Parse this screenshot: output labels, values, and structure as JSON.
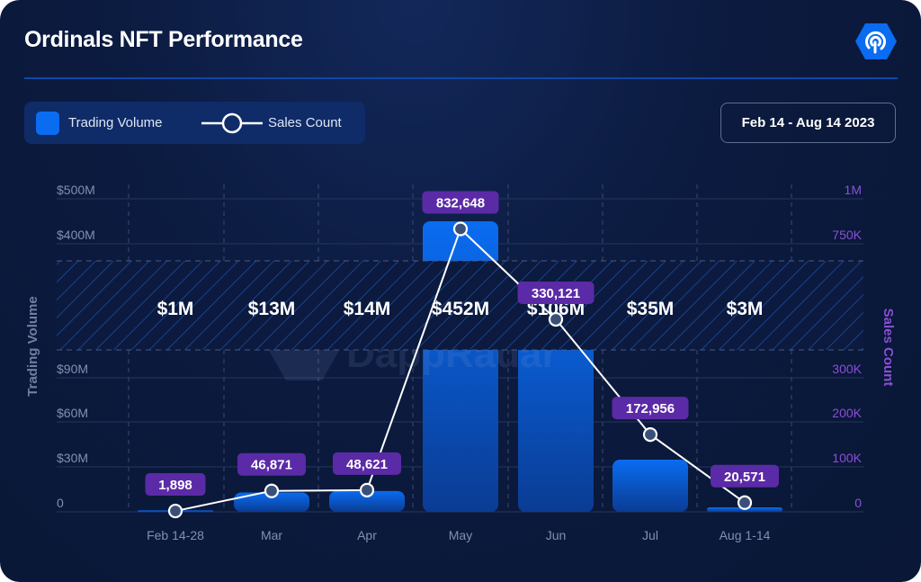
{
  "header": {
    "title": "Ordinals NFT Performance",
    "logo_icon": "dappradar-logo-icon"
  },
  "legend": {
    "volume_label": "Trading Volume",
    "sales_label": "Sales Count"
  },
  "date_range": "Feb 14 - Aug 14 2023",
  "watermark": "DappRadar",
  "colors": {
    "bar": "#0a6cf0",
    "line": "#ffffff",
    "pill": "#5b2aa6",
    "right_axis": "#8a4fd6",
    "background": "#0b1a3e"
  },
  "chart_data": {
    "type": "bar+line",
    "categories": [
      "Feb 14-28",
      "Mar",
      "Apr",
      "May",
      "Jun",
      "Jul",
      "Aug 1-14"
    ],
    "series": [
      {
        "name": "Trading Volume",
        "type": "bar",
        "axis": "left",
        "values": [
          1,
          13,
          14,
          452,
          106,
          35,
          3
        ],
        "unit": "$M",
        "labels": [
          "$1M",
          "$13M",
          "$14M",
          "$452M",
          "$106M",
          "$35M",
          "$3M"
        ]
      },
      {
        "name": "Sales Count",
        "type": "line",
        "axis": "right",
        "values": [
          1898,
          46871,
          48621,
          832648,
          330121,
          172956,
          20571
        ],
        "labels": [
          "1,898",
          "46,871",
          "48,621",
          "832,648",
          "330,121",
          "172,956",
          "20,571"
        ]
      }
    ],
    "ylabel_left": "Trading Volume",
    "ylabel_right": "Sales Count",
    "left_axis": {
      "broken": true,
      "lower_range": [
        0,
        90
      ],
      "upper_range": [
        400,
        500
      ],
      "ticks_lower": [
        "0",
        "$30M",
        "$60M",
        "$90M"
      ],
      "ticks_upper": [
        "$400M",
        "$500M"
      ]
    },
    "right_axis": {
      "broken": true,
      "lower_range": [
        0,
        300000
      ],
      "upper_range": [
        750000,
        1000000
      ],
      "ticks_lower": [
        "0",
        "100K",
        "200K",
        "300K"
      ],
      "ticks_upper": [
        "750K",
        "1M"
      ]
    },
    "grid": true
  }
}
